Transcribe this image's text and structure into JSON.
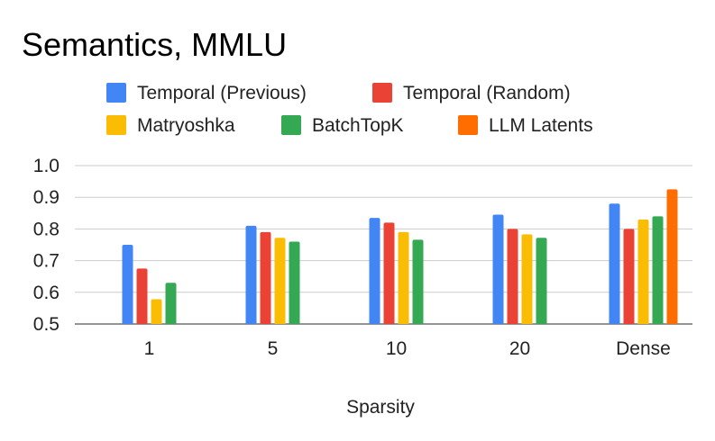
{
  "chart_data": {
    "type": "bar",
    "title": "Semantics, MMLU",
    "xlabel": "Sparsity",
    "ylabel": "",
    "ylim": [
      0.5,
      1.0
    ],
    "yticks": [
      "0.5",
      "0.6",
      "0.7",
      "0.8",
      "0.9",
      "1.0"
    ],
    "grid": true,
    "legend_position": "top",
    "categories": [
      "1",
      "5",
      "10",
      "20",
      "Dense"
    ],
    "series": [
      {
        "name": "Temporal (Previous)",
        "color": "#4285F4",
        "values": [
          0.75,
          0.81,
          0.835,
          0.845,
          0.88
        ]
      },
      {
        "name": "Temporal (Random)",
        "color": "#EA4335",
        "values": [
          0.675,
          0.79,
          0.82,
          0.8,
          0.8
        ]
      },
      {
        "name": "Matryoshka",
        "color": "#FBBC04",
        "values": [
          0.578,
          0.772,
          0.79,
          0.783,
          0.83
        ]
      },
      {
        "name": "BatchTopK",
        "color": "#34A853",
        "values": [
          0.63,
          0.76,
          0.766,
          0.772,
          0.84
        ]
      },
      {
        "name": "LLM Latents",
        "color": "#FF6D01",
        "values": [
          null,
          null,
          null,
          null,
          0.925
        ]
      }
    ]
  }
}
